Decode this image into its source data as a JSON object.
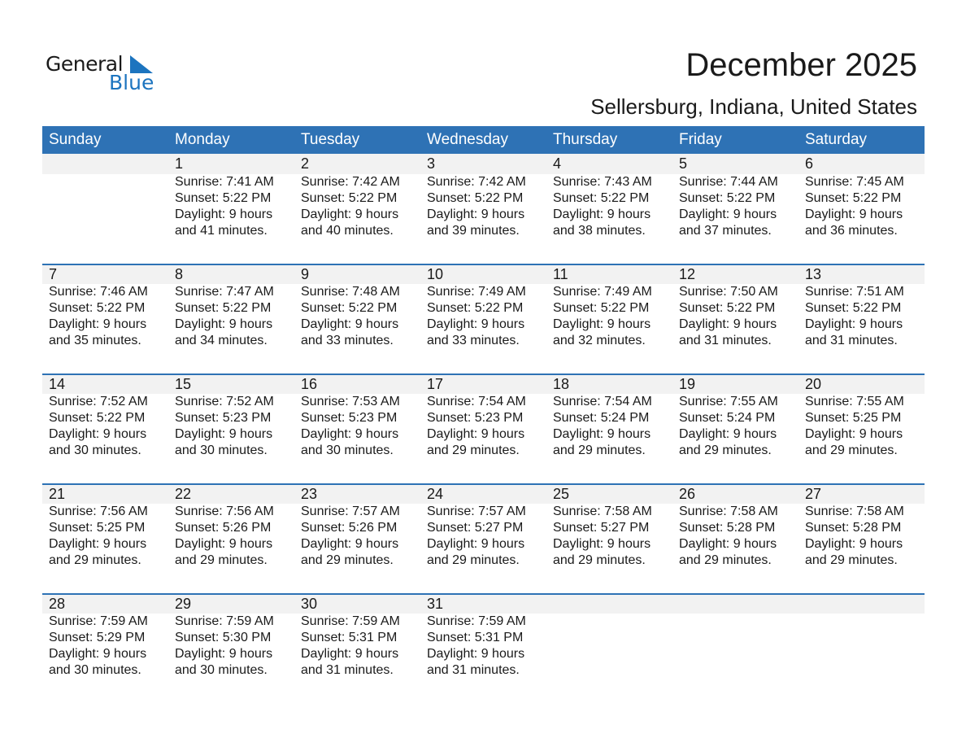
{
  "logo": {
    "word1": "General",
    "word2": "Blue",
    "accent": "#1c74bf"
  },
  "title": "December 2025",
  "subtitle": "Sellersburg, Indiana, United States",
  "colors": {
    "header": "#2e72b5",
    "band": "#f2f2f2"
  },
  "weekdays": [
    "Sunday",
    "Monday",
    "Tuesday",
    "Wednesday",
    "Thursday",
    "Friday",
    "Saturday"
  ],
  "weeks": [
    [
      null,
      {
        "day": "1",
        "sunrise": "Sunrise: 7:41 AM",
        "sunset": "Sunset: 5:22 PM",
        "daylight": "Daylight: 9 hours",
        "minutes": "and 41 minutes."
      },
      {
        "day": "2",
        "sunrise": "Sunrise: 7:42 AM",
        "sunset": "Sunset: 5:22 PM",
        "daylight": "Daylight: 9 hours",
        "minutes": "and 40 minutes."
      },
      {
        "day": "3",
        "sunrise": "Sunrise: 7:42 AM",
        "sunset": "Sunset: 5:22 PM",
        "daylight": "Daylight: 9 hours",
        "minutes": "and 39 minutes."
      },
      {
        "day": "4",
        "sunrise": "Sunrise: 7:43 AM",
        "sunset": "Sunset: 5:22 PM",
        "daylight": "Daylight: 9 hours",
        "minutes": "and 38 minutes."
      },
      {
        "day": "5",
        "sunrise": "Sunrise: 7:44 AM",
        "sunset": "Sunset: 5:22 PM",
        "daylight": "Daylight: 9 hours",
        "minutes": "and 37 minutes."
      },
      {
        "day": "6",
        "sunrise": "Sunrise: 7:45 AM",
        "sunset": "Sunset: 5:22 PM",
        "daylight": "Daylight: 9 hours",
        "minutes": "and 36 minutes."
      }
    ],
    [
      {
        "day": "7",
        "sunrise": "Sunrise: 7:46 AM",
        "sunset": "Sunset: 5:22 PM",
        "daylight": "Daylight: 9 hours",
        "minutes": "and 35 minutes."
      },
      {
        "day": "8",
        "sunrise": "Sunrise: 7:47 AM",
        "sunset": "Sunset: 5:22 PM",
        "daylight": "Daylight: 9 hours",
        "minutes": "and 34 minutes."
      },
      {
        "day": "9",
        "sunrise": "Sunrise: 7:48 AM",
        "sunset": "Sunset: 5:22 PM",
        "daylight": "Daylight: 9 hours",
        "minutes": "and 33 minutes."
      },
      {
        "day": "10",
        "sunrise": "Sunrise: 7:49 AM",
        "sunset": "Sunset: 5:22 PM",
        "daylight": "Daylight: 9 hours",
        "minutes": "and 33 minutes."
      },
      {
        "day": "11",
        "sunrise": "Sunrise: 7:49 AM",
        "sunset": "Sunset: 5:22 PM",
        "daylight": "Daylight: 9 hours",
        "minutes": "and 32 minutes."
      },
      {
        "day": "12",
        "sunrise": "Sunrise: 7:50 AM",
        "sunset": "Sunset: 5:22 PM",
        "daylight": "Daylight: 9 hours",
        "minutes": "and 31 minutes."
      },
      {
        "day": "13",
        "sunrise": "Sunrise: 7:51 AM",
        "sunset": "Sunset: 5:22 PM",
        "daylight": "Daylight: 9 hours",
        "minutes": "and 31 minutes."
      }
    ],
    [
      {
        "day": "14",
        "sunrise": "Sunrise: 7:52 AM",
        "sunset": "Sunset: 5:22 PM",
        "daylight": "Daylight: 9 hours",
        "minutes": "and 30 minutes."
      },
      {
        "day": "15",
        "sunrise": "Sunrise: 7:52 AM",
        "sunset": "Sunset: 5:23 PM",
        "daylight": "Daylight: 9 hours",
        "minutes": "and 30 minutes."
      },
      {
        "day": "16",
        "sunrise": "Sunrise: 7:53 AM",
        "sunset": "Sunset: 5:23 PM",
        "daylight": "Daylight: 9 hours",
        "minutes": "and 30 minutes."
      },
      {
        "day": "17",
        "sunrise": "Sunrise: 7:54 AM",
        "sunset": "Sunset: 5:23 PM",
        "daylight": "Daylight: 9 hours",
        "minutes": "and 29 minutes."
      },
      {
        "day": "18",
        "sunrise": "Sunrise: 7:54 AM",
        "sunset": "Sunset: 5:24 PM",
        "daylight": "Daylight: 9 hours",
        "minutes": "and 29 minutes."
      },
      {
        "day": "19",
        "sunrise": "Sunrise: 7:55 AM",
        "sunset": "Sunset: 5:24 PM",
        "daylight": "Daylight: 9 hours",
        "minutes": "and 29 minutes."
      },
      {
        "day": "20",
        "sunrise": "Sunrise: 7:55 AM",
        "sunset": "Sunset: 5:25 PM",
        "daylight": "Daylight: 9 hours",
        "minutes": "and 29 minutes."
      }
    ],
    [
      {
        "day": "21",
        "sunrise": "Sunrise: 7:56 AM",
        "sunset": "Sunset: 5:25 PM",
        "daylight": "Daylight: 9 hours",
        "minutes": "and 29 minutes."
      },
      {
        "day": "22",
        "sunrise": "Sunrise: 7:56 AM",
        "sunset": "Sunset: 5:26 PM",
        "daylight": "Daylight: 9 hours",
        "minutes": "and 29 minutes."
      },
      {
        "day": "23",
        "sunrise": "Sunrise: 7:57 AM",
        "sunset": "Sunset: 5:26 PM",
        "daylight": "Daylight: 9 hours",
        "minutes": "and 29 minutes."
      },
      {
        "day": "24",
        "sunrise": "Sunrise: 7:57 AM",
        "sunset": "Sunset: 5:27 PM",
        "daylight": "Daylight: 9 hours",
        "minutes": "and 29 minutes."
      },
      {
        "day": "25",
        "sunrise": "Sunrise: 7:58 AM",
        "sunset": "Sunset: 5:27 PM",
        "daylight": "Daylight: 9 hours",
        "minutes": "and 29 minutes."
      },
      {
        "day": "26",
        "sunrise": "Sunrise: 7:58 AM",
        "sunset": "Sunset: 5:28 PM",
        "daylight": "Daylight: 9 hours",
        "minutes": "and 29 minutes."
      },
      {
        "day": "27",
        "sunrise": "Sunrise: 7:58 AM",
        "sunset": "Sunset: 5:28 PM",
        "daylight": "Daylight: 9 hours",
        "minutes": "and 29 minutes."
      }
    ],
    [
      {
        "day": "28",
        "sunrise": "Sunrise: 7:59 AM",
        "sunset": "Sunset: 5:29 PM",
        "daylight": "Daylight: 9 hours",
        "minutes": "and 30 minutes."
      },
      {
        "day": "29",
        "sunrise": "Sunrise: 7:59 AM",
        "sunset": "Sunset: 5:30 PM",
        "daylight": "Daylight: 9 hours",
        "minutes": "and 30 minutes."
      },
      {
        "day": "30",
        "sunrise": "Sunrise: 7:59 AM",
        "sunset": "Sunset: 5:31 PM",
        "daylight": "Daylight: 9 hours",
        "minutes": "and 31 minutes."
      },
      {
        "day": "31",
        "sunrise": "Sunrise: 7:59 AM",
        "sunset": "Sunset: 5:31 PM",
        "daylight": "Daylight: 9 hours",
        "minutes": "and 31 minutes."
      },
      null,
      null,
      null
    ]
  ]
}
